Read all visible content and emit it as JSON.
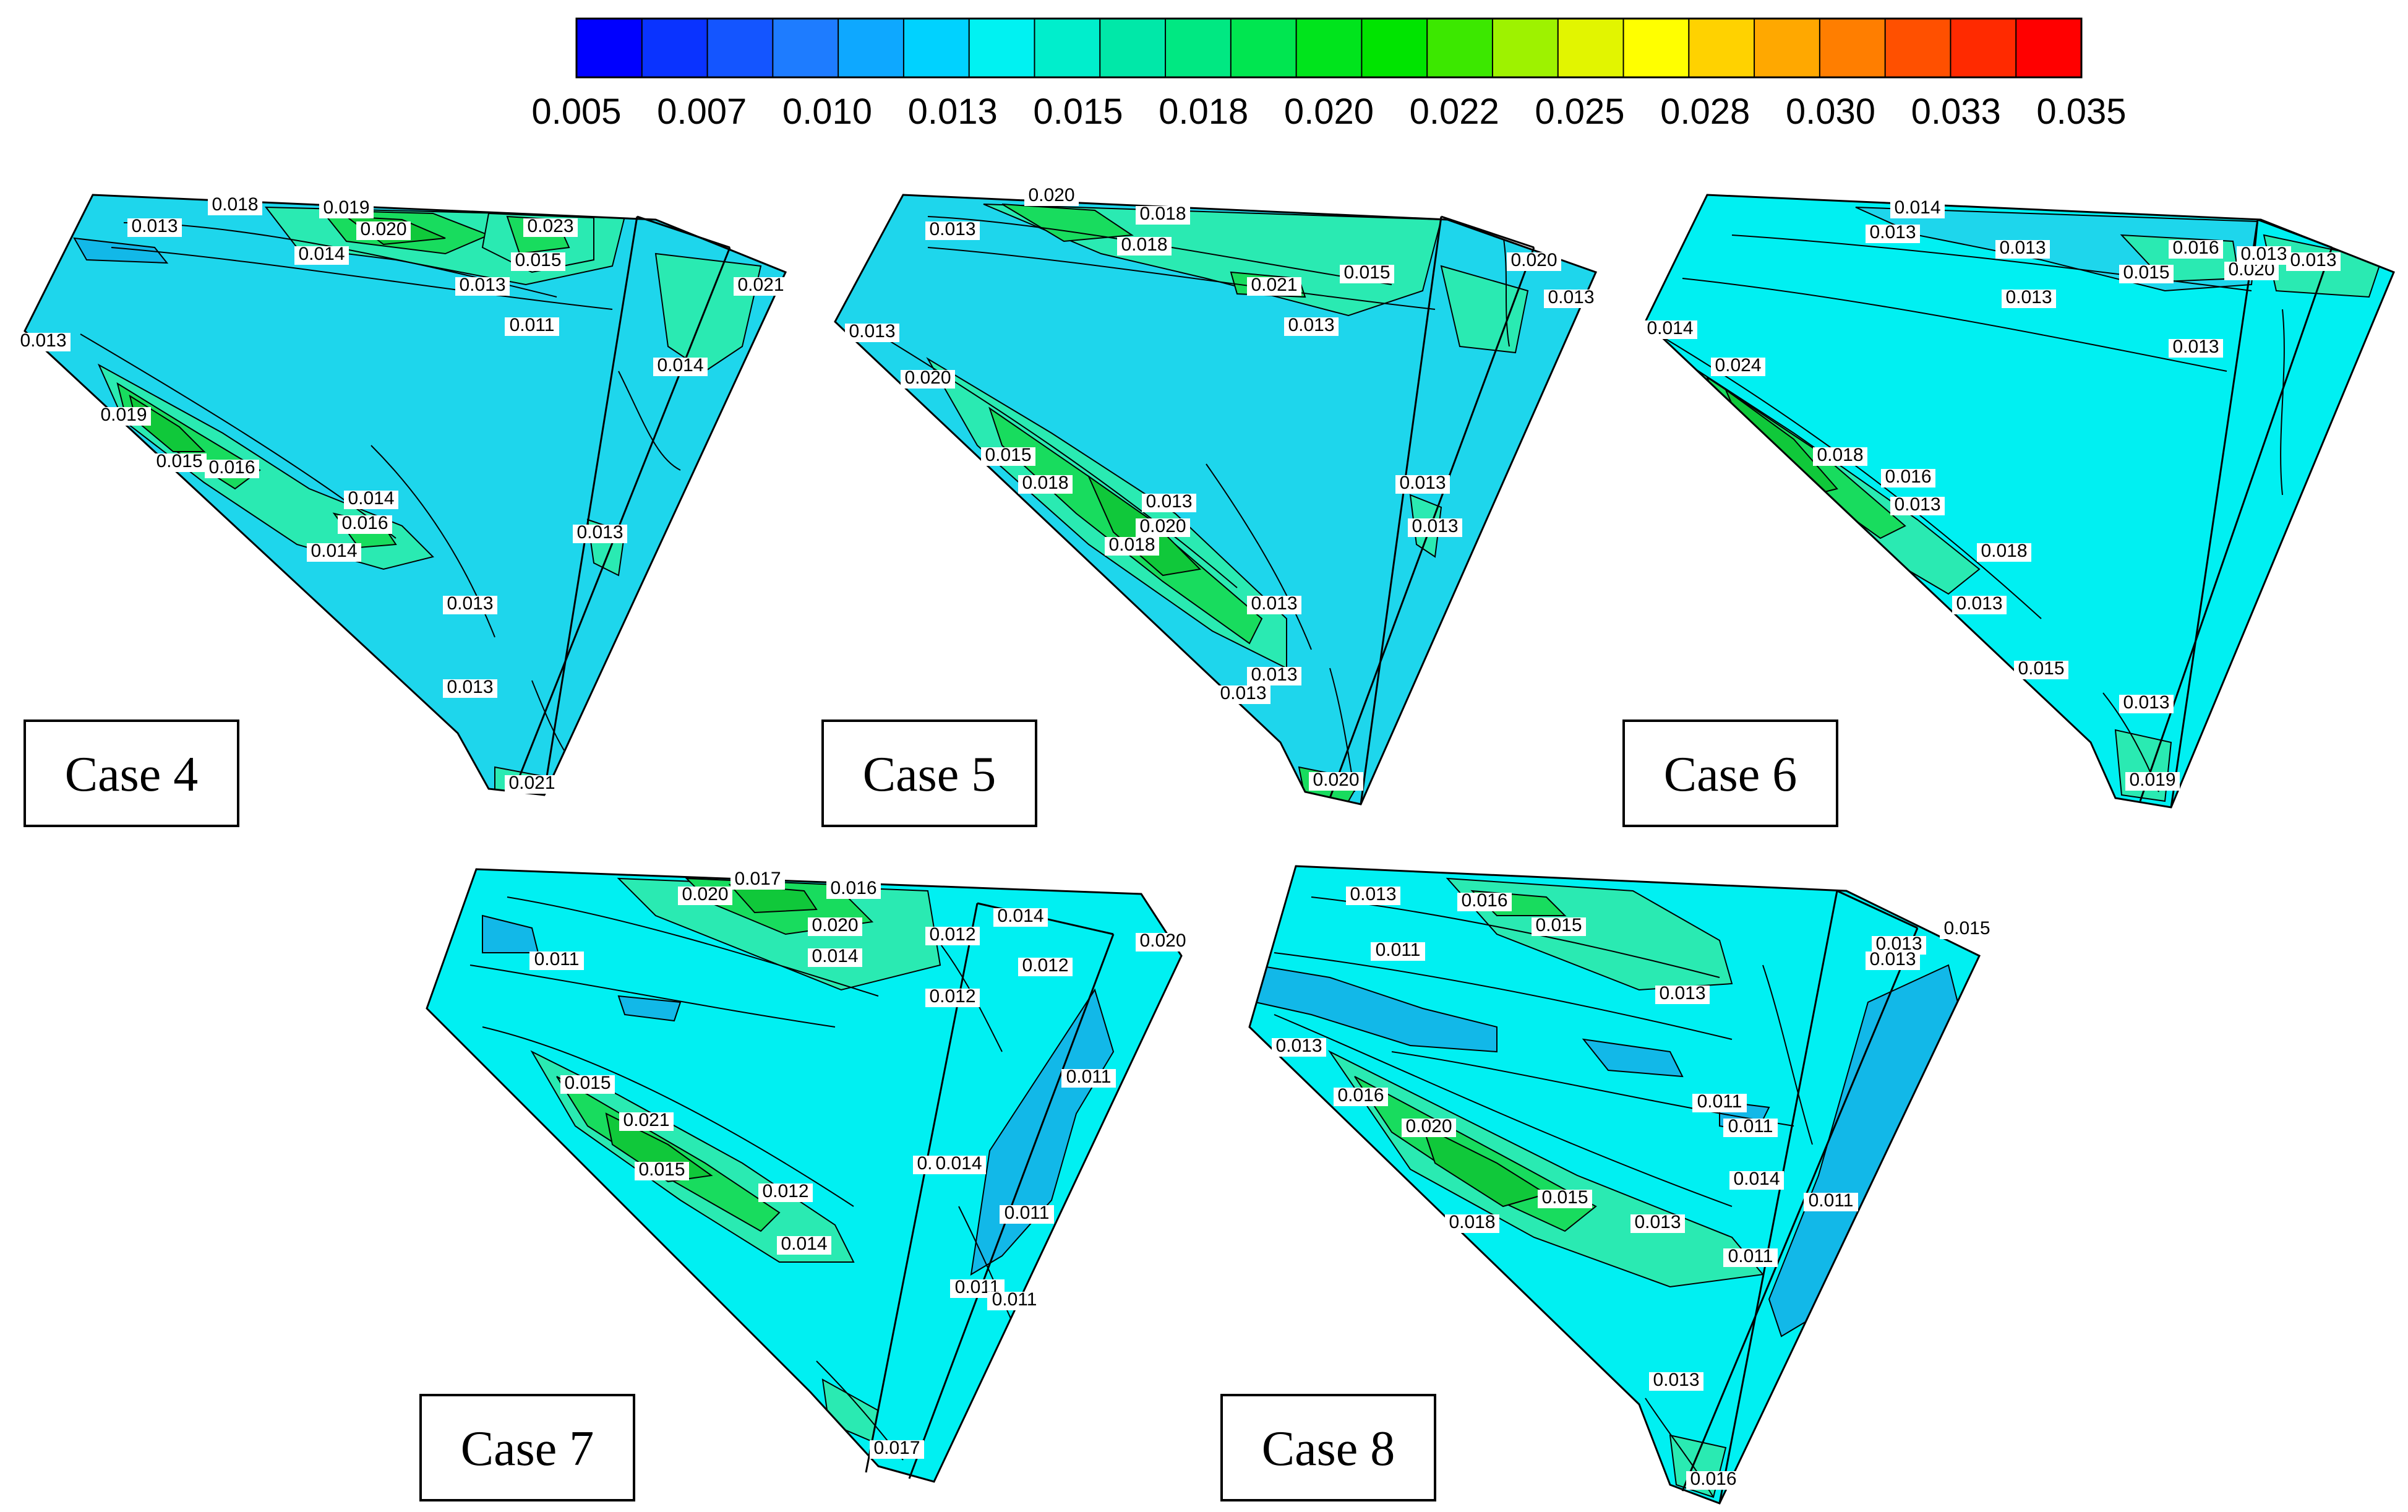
{
  "colorbar": {
    "colors": [
      "#0000ff",
      "#0a33ff",
      "#1455ff",
      "#1e7cff",
      "#0ea8ff",
      "#00d2ff",
      "#00f2f2",
      "#00eecc",
      "#00e8a8",
      "#00e882",
      "#00e650",
      "#00e41c",
      "#00e400",
      "#3ce800",
      "#9ef200",
      "#e2f500",
      "#ffff00",
      "#ffd200",
      "#ffa800",
      "#ff7e00",
      "#ff5000",
      "#ff2a00",
      "#ff0000"
    ],
    "ticks": [
      "0.005",
      "0.007",
      "0.010",
      "0.013",
      "0.015",
      "0.018",
      "0.020",
      "0.022",
      "0.025",
      "0.028",
      "0.030",
      "0.033",
      "0.035"
    ]
  },
  "colors": {
    "mid_cyan": "#1ed6ec",
    "light_cyan": "#00f0f2",
    "dark_cyan": "#12b8e8",
    "teal_green": "#2aeab2",
    "green": "#18dc5e",
    "dark_green": "#10c83a",
    "line": "#000000"
  },
  "panels": [
    {
      "case_label": "Case 4",
      "base_color": "mid_cyan",
      "labels": [
        "0.018",
        "0.019",
        "0.013",
        "0.020",
        "0.014",
        "0.023",
        "0.015",
        "0.013",
        "0.011",
        "0.021",
        "0.013",
        "0.014",
        "0.019",
        "0.016",
        "0.015",
        "0.014",
        "0.016",
        "0.014",
        "0.013",
        "0.013",
        "0.013",
        "0.021"
      ]
    },
    {
      "case_label": "Case 5",
      "base_color": "mid_cyan",
      "labels": [
        "0.020",
        "0.013",
        "0.018",
        "0.018",
        "0.015",
        "0.021",
        "0.013",
        "0.020",
        "0.013",
        "0.013",
        "0.020",
        "0.015",
        "0.018",
        "0.013",
        "0.020",
        "0.018",
        "0.013",
        "0.013",
        "0.013",
        "0.013",
        "0.013",
        "0.020"
      ]
    },
    {
      "case_label": "Case 6",
      "base_color": "light_cyan",
      "labels": [
        "0.014",
        "0.013",
        "0.016",
        "0.015",
        "0.013",
        "0.013",
        "0.020",
        "0.013",
        "0.013",
        "0.013",
        "0.014",
        "0.024",
        "0.018",
        "0.016",
        "0.013",
        "0.018",
        "0.013",
        "0.015",
        "0.013",
        "0.019"
      ]
    },
    {
      "case_label": "Case 7",
      "base_color": "light_cyan",
      "labels": [
        "0.020",
        "0.017",
        "0.016",
        "0.020",
        "0.014",
        "0.012",
        "0.014",
        "0.020",
        "0.011",
        "0.012",
        "0.012",
        "0.011",
        "0.015",
        "0.021",
        "0.015",
        "0.012",
        "0.014",
        "0.014",
        "0.011",
        "0.011",
        "0.011",
        "0.014",
        "0.017"
      ]
    },
    {
      "case_label": "Case 8",
      "base_color": "light_cyan",
      "labels": [
        "0.013",
        "0.016",
        "0.015",
        "0.011",
        "0.013",
        "0.015",
        "0.013",
        "0.013",
        "0.011",
        "0.011",
        "0.014",
        "0.011",
        "0.013",
        "0.016",
        "0.020",
        "0.018",
        "0.015",
        "0.013",
        "0.011",
        "0.013",
        "0.016"
      ]
    }
  ]
}
